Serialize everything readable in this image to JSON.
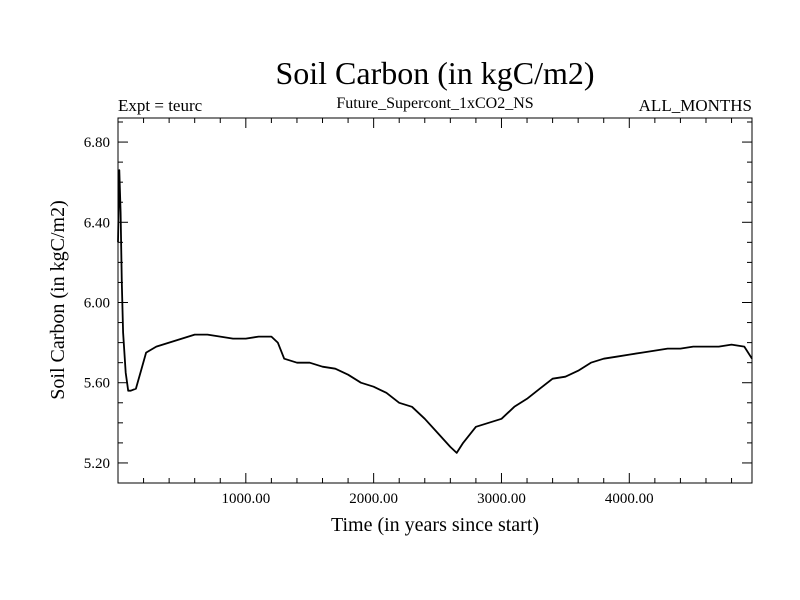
{
  "chart_data": {
    "type": "line",
    "title": "Soil Carbon (in kgC/m2)",
    "left_label": "Expt = teurc",
    "center_label": "Future_Supercont_1xCO2_NS",
    "right_label": "ALL_MONTHS",
    "xlabel": "Time (in years since start)",
    "ylabel": "Soil Carbon (in kgC/m2)",
    "xlim": [
      0,
      4960
    ],
    "ylim": [
      5.1,
      6.92
    ],
    "xticks": [
      1000,
      2000,
      3000,
      4000
    ],
    "xtick_labels": [
      "1000.00",
      "2000.00",
      "3000.00",
      "4000.00"
    ],
    "yticks": [
      5.2,
      5.6,
      6.0,
      6.4,
      6.8
    ],
    "ytick_labels": [
      "5.20",
      "5.60",
      "6.00",
      "6.40",
      "6.80"
    ],
    "grid": false,
    "series": [
      {
        "color": "#000000",
        "x": [
          0,
          10,
          20,
          30,
          40,
          60,
          80,
          100,
          140,
          180,
          220,
          300,
          400,
          500,
          600,
          700,
          800,
          900,
          1000,
          1100,
          1200,
          1250,
          1300,
          1400,
          1500,
          1600,
          1700,
          1800,
          1900,
          2000,
          2100,
          2200,
          2300,
          2400,
          2500,
          2600,
          2650,
          2700,
          2800,
          2900,
          3000,
          3100,
          3200,
          3300,
          3400,
          3500,
          3600,
          3700,
          3800,
          3900,
          4000,
          4100,
          4200,
          4300,
          4400,
          4500,
          4600,
          4700,
          4800,
          4900,
          4960
        ],
        "y": [
          6.3,
          6.66,
          6.45,
          6.1,
          5.85,
          5.65,
          5.56,
          5.56,
          5.57,
          5.66,
          5.75,
          5.78,
          5.8,
          5.82,
          5.84,
          5.84,
          5.83,
          5.82,
          5.82,
          5.83,
          5.83,
          5.8,
          5.72,
          5.7,
          5.7,
          5.68,
          5.67,
          5.64,
          5.6,
          5.58,
          5.55,
          5.5,
          5.48,
          5.42,
          5.35,
          5.28,
          5.25,
          5.3,
          5.38,
          5.4,
          5.42,
          5.48,
          5.52,
          5.57,
          5.62,
          5.63,
          5.66,
          5.7,
          5.72,
          5.73,
          5.74,
          5.75,
          5.76,
          5.77,
          5.77,
          5.78,
          5.78,
          5.78,
          5.79,
          5.78,
          5.72
        ]
      }
    ]
  }
}
